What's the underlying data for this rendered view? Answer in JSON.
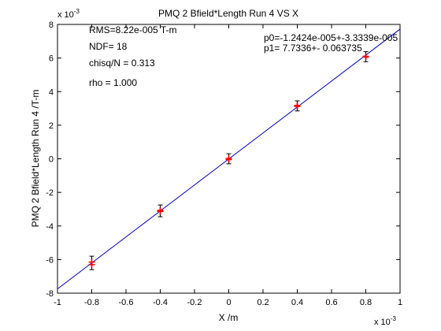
{
  "chart_data": {
    "type": "scatter",
    "title": "PMQ 2 Bfield*Length Run 4 VS X",
    "xlabel": "X /m",
    "ylabel": "PMQ 2 Bfield*Length Run 4 /T-m",
    "x_multiplier_label": "x 10",
    "x_multiplier_exp": "-3",
    "y_multiplier_label": "x 10",
    "y_multiplier_exp": "-3",
    "scale": 0.001,
    "xlim": [
      -0.001,
      0.001
    ],
    "ylim": [
      -0.008,
      0.008
    ],
    "x_ticks": [
      -0.001,
      -0.0008,
      -0.0006,
      -0.0004,
      -0.0002,
      0,
      0.0002,
      0.0004,
      0.0006,
      0.0008,
      0.001
    ],
    "x_tick_labels": [
      "-1",
      "-0.8",
      "-0.6",
      "-0.4",
      "-0.2",
      "0",
      "0.2",
      "0.4",
      "0.6",
      "0.8",
      "1"
    ],
    "y_ticks": [
      -0.008,
      -0.006,
      -0.004,
      -0.002,
      0,
      0.002,
      0.004,
      0.006,
      0.008
    ],
    "y_tick_labels": [
      "-8",
      "-6",
      "-4",
      "-2",
      "0",
      "2",
      "4",
      "6",
      "8"
    ],
    "grid": false,
    "colors": {
      "points": "#ff0000",
      "error_bars": "#000000",
      "fit_line": "#0000cc",
      "axes": "#000000",
      "background": "#ffffff"
    },
    "points": [
      {
        "x": -0.0008,
        "y": -0.0063
      },
      {
        "x": -0.0008,
        "y": -0.00615
      },
      {
        "x": -0.0004,
        "y": -0.00313
      },
      {
        "x": -0.0004,
        "y": -0.00307
      },
      {
        "x": 0.0,
        "y": -5e-05
      },
      {
        "x": 0.0,
        "y": 2e-05
      },
      {
        "x": 0.0004,
        "y": 0.00318
      },
      {
        "x": 0.0004,
        "y": 0.00312
      },
      {
        "x": 0.0008,
        "y": 0.0061
      },
      {
        "x": 0.0008,
        "y": 0.00606
      }
    ],
    "error_bars": [
      {
        "x": -0.0008,
        "y": -0.0062,
        "err": 0.0004
      },
      {
        "x": -0.0004,
        "y": -0.0031,
        "err": 0.00035
      },
      {
        "x": 0.0,
        "y": 0.0,
        "err": 0.0003
      },
      {
        "x": 0.0004,
        "y": 0.00315,
        "err": 0.0003
      },
      {
        "x": 0.0008,
        "y": 0.00608,
        "err": 0.0003
      }
    ],
    "fit": {
      "p0": -1.2424e-05,
      "p1": 7.7336
    },
    "annotations": {
      "rms": "RMS=8.22e-005 T-m",
      "ndf": "NDF=   18",
      "chisq": "chisq/N = 0.313",
      "rho": "rho     =  1.000",
      "p0": "p0=-1.2424e-005+-3.3339e-005",
      "p1": "p1=   7.7336+- 0.063735"
    }
  }
}
